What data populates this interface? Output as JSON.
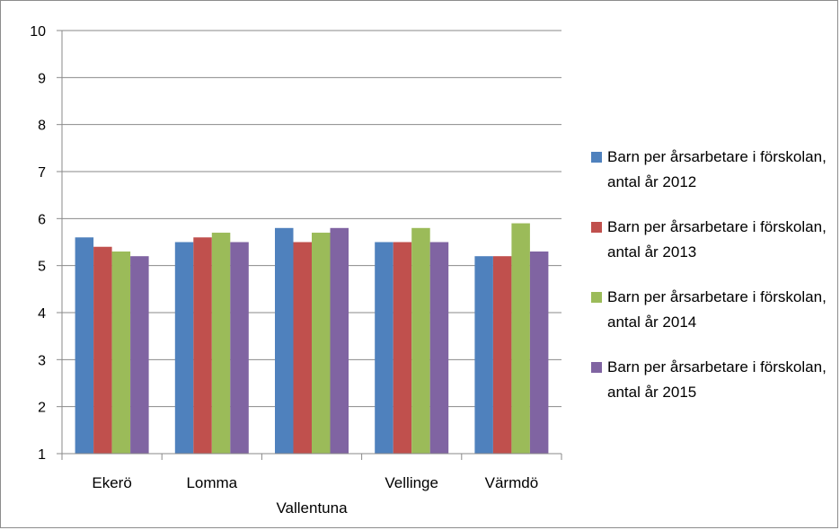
{
  "chart_data": {
    "type": "bar",
    "title": "",
    "xlabel": "",
    "ylabel": "",
    "ylim": [
      1,
      10
    ],
    "yticks": [
      1,
      2,
      3,
      4,
      5,
      6,
      7,
      8,
      9,
      10
    ],
    "grid": true,
    "legend_position": "right",
    "categories": [
      "Ekerö",
      "Lomma",
      "Vallentuna",
      "Vellinge",
      "Värmdö"
    ],
    "series": [
      {
        "name": "Barn per årsarbetare  i förskolan, antal år 2012",
        "color": "#4f81bd",
        "values": [
          5.6,
          5.5,
          5.8,
          5.5,
          5.2
        ]
      },
      {
        "name": "Barn per årsarbetare  i förskolan, antal år 2013",
        "color": "#c0504d",
        "values": [
          5.4,
          5.6,
          5.5,
          5.5,
          5.2
        ]
      },
      {
        "name": "Barn per årsarbetare  i förskolan, antal år 2014",
        "color": "#9bbb59",
        "values": [
          5.3,
          5.7,
          5.7,
          5.8,
          5.9
        ]
      },
      {
        "name": "Barn per årsarbetare  i förskolan, antal år 2015",
        "color": "#8064a2",
        "values": [
          5.2,
          5.5,
          5.8,
          5.5,
          5.3
        ]
      }
    ]
  }
}
